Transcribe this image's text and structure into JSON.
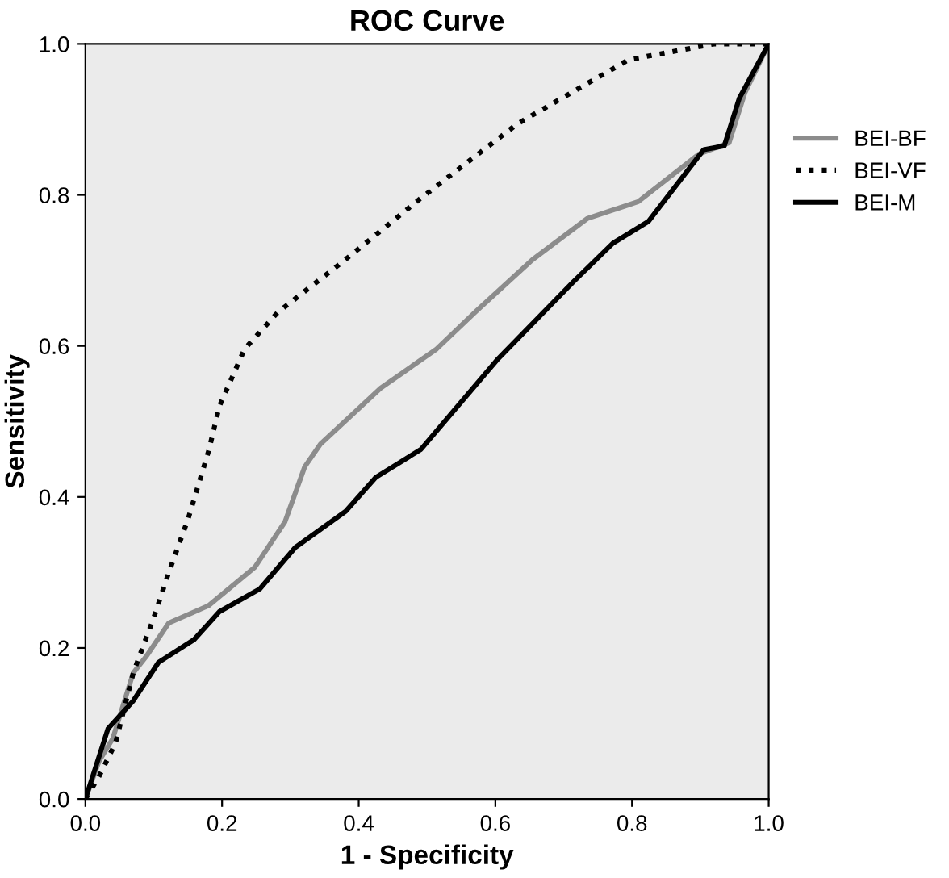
{
  "chart_data": {
    "type": "line",
    "title": "ROC Curve",
    "xlabel": "1 - Specificity",
    "ylabel": "Sensitivity",
    "xlim": [
      0,
      1
    ],
    "ylim": [
      0,
      1
    ],
    "xticks": [
      {
        "value": 0,
        "label": "0.0"
      },
      {
        "value": 0.2,
        "label": "0.2"
      },
      {
        "value": 0.4,
        "label": "0.4"
      },
      {
        "value": 0.6,
        "label": "0.6"
      },
      {
        "value": 0.8,
        "label": "0.8"
      },
      {
        "value": 1,
        "label": "1.0"
      }
    ],
    "yticks": [
      {
        "value": 0,
        "label": "0.0"
      },
      {
        "value": 0.2,
        "label": "0.2"
      },
      {
        "value": 0.4,
        "label": "0.4"
      },
      {
        "value": 0.6,
        "label": "0.6"
      },
      {
        "value": 0.8,
        "label": "0.8"
      },
      {
        "value": 1,
        "label": "1.0"
      }
    ],
    "grid": false,
    "legend": "right",
    "marker": "none",
    "series": [
      {
        "name": "BEI-BF",
        "color": "#8c8c8c",
        "line_style": "solid",
        "x": [
          0,
          0.02,
          0.04,
          0.07,
          0.09,
          0.122,
          0.18,
          0.248,
          0.292,
          0.321,
          0.344,
          0.432,
          0.514,
          0.573,
          0.654,
          0.735,
          0.809,
          0.898,
          0.942,
          0.965,
          1
        ],
        "values": [
          0,
          0.05,
          0.08,
          0.167,
          0.19,
          0.233,
          0.256,
          0.307,
          0.367,
          0.44,
          0.47,
          0.544,
          0.596,
          0.647,
          0.714,
          0.769,
          0.791,
          0.854,
          0.869,
          0.935,
          1
        ]
      },
      {
        "name": "BEI-VF",
        "color": "#000000",
        "line_style": "dotted",
        "x": [
          0,
          0.02,
          0.044,
          0.07,
          0.1,
          0.122,
          0.15,
          0.181,
          0.196,
          0.233,
          0.281,
          0.38,
          0.49,
          0.632,
          0.72,
          0.795,
          0.92,
          1
        ],
        "values": [
          0,
          0.03,
          0.074,
          0.167,
          0.24,
          0.3,
          0.37,
          0.463,
          0.52,
          0.596,
          0.644,
          0.714,
          0.795,
          0.894,
          0.94,
          0.979,
          1,
          1
        ]
      },
      {
        "name": "BEI-M",
        "color": "#000000",
        "line_style": "solid",
        "x": [
          0,
          0.033,
          0.07,
          0.107,
          0.159,
          0.196,
          0.255,
          0.307,
          0.381,
          0.425,
          0.491,
          0.602,
          0.713,
          0.772,
          0.824,
          0.905,
          0.935,
          0.957,
          1
        ],
        "values": [
          0,
          0.093,
          0.13,
          0.181,
          0.211,
          0.248,
          0.278,
          0.333,
          0.381,
          0.426,
          0.463,
          0.581,
          0.684,
          0.736,
          0.765,
          0.86,
          0.865,
          0.928,
          1
        ]
      }
    ]
  }
}
